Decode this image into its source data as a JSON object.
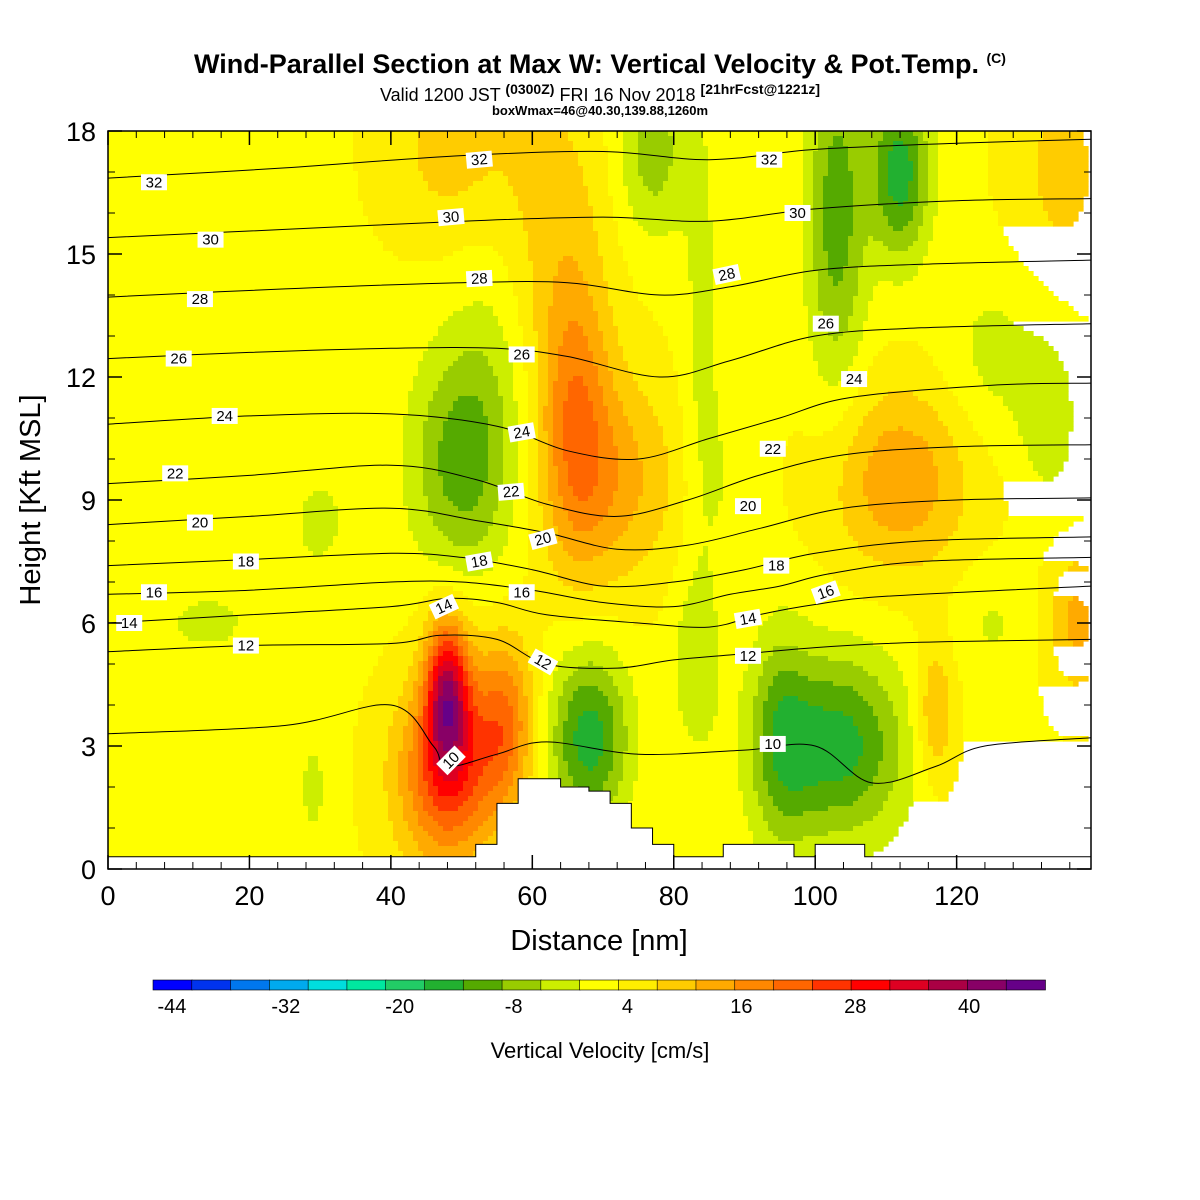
{
  "title": {
    "main": "Wind-Parallel Section at Max W: Vertical Velocity & Pot.Temp.",
    "copyright": "(C)",
    "valid_prefix": "Valid 1200 JST",
    "valid_z": "(0300Z)",
    "valid_date": "FRI 16 Nov 2018",
    "forecast": "[21hrFcst@1221z]",
    "box_max": "boxWmax=46@40.30,139.88,1260m"
  },
  "chart_data": {
    "type": "heatmap",
    "xlabel": "Distance [nm]",
    "ylabel": "Height [Kft MSL]",
    "xlim": [
      0,
      139
    ],
    "ylim": [
      0,
      18
    ],
    "xticks": [
      0,
      20,
      40,
      60,
      80,
      100,
      120
    ],
    "yticks": [
      0,
      3,
      6,
      9,
      12,
      15,
      18
    ],
    "colorbar": {
      "label": "Vertical Velocity [cm/s]",
      "range": [
        -46,
        48
      ],
      "tick_labels": [
        -44,
        -32,
        -20,
        -8,
        4,
        16,
        28,
        40
      ],
      "colors": [
        "#0000ff",
        "#0033ee",
        "#0077ee",
        "#00aaee",
        "#00dddd",
        "#00e8a0",
        "#22cc66",
        "#22b030",
        "#55aa00",
        "#99cc00",
        "#ccee00",
        "#ffff00",
        "#ffee00",
        "#ffcc00",
        "#ffaa00",
        "#ff8800",
        "#ff6600",
        "#ff3300",
        "#ff0000",
        "#dd0022",
        "#aa0044",
        "#880066",
        "#660088"
      ]
    },
    "vertical_velocity_cells": [
      {
        "x": 48,
        "y": 4.3,
        "sx": 2.2,
        "sy": 1.3,
        "w": 30
      },
      {
        "x": 48,
        "y": 2.3,
        "sx": 5.0,
        "sy": 1.6,
        "w": 22
      },
      {
        "x": 56,
        "y": 3.6,
        "sx": 3.0,
        "sy": 1.5,
        "w": 16
      },
      {
        "x": 66,
        "y": 11.0,
        "sx": 3.5,
        "sy": 2.5,
        "w": 14
      },
      {
        "x": 72,
        "y": 9.5,
        "sx": 6.0,
        "sy": 1.8,
        "w": 10
      },
      {
        "x": 62,
        "y": 16.0,
        "sx": 6.0,
        "sy": 3.0,
        "w": 6
      },
      {
        "x": 48,
        "y": 17.5,
        "sx": 6.0,
        "sy": 1.5,
        "w": 6
      },
      {
        "x": 112,
        "y": 9.5,
        "sx": 7.0,
        "sy": 1.6,
        "w": 12
      },
      {
        "x": 117,
        "y": 3.8,
        "sx": 2.0,
        "sy": 1.2,
        "w": 10
      },
      {
        "x": 137,
        "y": 6.0,
        "sx": 3.0,
        "sy": 1.2,
        "w": 10
      },
      {
        "x": 135,
        "y": 17.0,
        "sx": 5.0,
        "sy": 2.0,
        "w": 6
      },
      {
        "x": 88,
        "y": 9.5,
        "sx": 2.5,
        "sy": 1.5,
        "w": -3
      },
      {
        "x": 50,
        "y": 10.0,
        "sx": 5.0,
        "sy": 2.0,
        "w": -14
      },
      {
        "x": 55,
        "y": 13.0,
        "sx": 4.0,
        "sy": 2.5,
        "w": -4
      },
      {
        "x": 68,
        "y": 3.2,
        "sx": 4.0,
        "sy": 1.5,
        "w": -18
      },
      {
        "x": 103,
        "y": 3.0,
        "sx": 7.0,
        "sy": 1.6,
        "w": -18
      },
      {
        "x": 95,
        "y": 3.2,
        "sx": 3.0,
        "sy": 2.0,
        "w": -9
      },
      {
        "x": 83,
        "y": 5.0,
        "sx": 2.5,
        "sy": 1.5,
        "w": -6
      },
      {
        "x": 103,
        "y": 16.0,
        "sx": 3.0,
        "sy": 3.0,
        "w": -14
      },
      {
        "x": 112,
        "y": 17.0,
        "sx": 3.0,
        "sy": 1.5,
        "w": -18
      },
      {
        "x": 77,
        "y": 17.5,
        "sx": 3.5,
        "sy": 1.5,
        "w": -10
      },
      {
        "x": 84,
        "y": 12.5,
        "sx": 2.0,
        "sy": 4.5,
        "w": -5
      },
      {
        "x": 29,
        "y": 2.0,
        "sx": 1.5,
        "sy": 1.0,
        "w": -5
      },
      {
        "x": 14,
        "y": 6.0,
        "sx": 8.0,
        "sy": 1.0,
        "w": -4
      },
      {
        "x": 30,
        "y": 8.5,
        "sx": 5.0,
        "sy": 1.5,
        "w": -4
      },
      {
        "x": 125,
        "y": 12.5,
        "sx": 5.0,
        "sy": 1.5,
        "w": -5
      },
      {
        "x": 133,
        "y": 11.0,
        "sx": 3.0,
        "sy": 1.5,
        "w": -6
      },
      {
        "x": 125,
        "y": 6.0,
        "sx": 4.0,
        "sy": 1.0,
        "w": -4
      },
      {
        "x": 15,
        "y": 1.0,
        "sx": 5.0,
        "sy": 1.0,
        "w": -3
      }
    ],
    "terrain": [
      [
        0,
        0.3
      ],
      [
        47,
        0.3
      ],
      [
        52,
        0.3
      ],
      [
        52,
        0.6
      ],
      [
        55,
        0.6
      ],
      [
        55,
        1.6
      ],
      [
        58,
        1.6
      ],
      [
        58,
        2.2
      ],
      [
        64,
        2.2
      ],
      [
        64,
        2.0
      ],
      [
        68,
        2.0
      ],
      [
        68,
        1.9
      ],
      [
        71,
        1.9
      ],
      [
        71,
        1.6
      ],
      [
        74,
        1.6
      ],
      [
        74,
        1.0
      ],
      [
        77,
        1.0
      ],
      [
        77,
        0.6
      ],
      [
        80,
        0.6
      ],
      [
        80,
        0.3
      ],
      [
        87,
        0.3
      ],
      [
        87,
        0.6
      ],
      [
        97,
        0.6
      ],
      [
        97,
        0.3
      ],
      [
        100,
        0.3
      ],
      [
        100,
        0.6
      ],
      [
        107,
        0.6
      ],
      [
        107,
        0.3
      ],
      [
        139,
        0.3
      ]
    ],
    "theta_contours": [
      {
        "level": 10,
        "points": [
          [
            0,
            3.3
          ],
          [
            25,
            3.5
          ],
          [
            40,
            4.0
          ],
          [
            46,
            3.0
          ],
          [
            48,
            2.5
          ],
          [
            55,
            2.8
          ],
          [
            62,
            3.1
          ],
          [
            75,
            2.8
          ],
          [
            90,
            2.9
          ],
          [
            100,
            3.0
          ],
          [
            108,
            2.1
          ],
          [
            117,
            2.5
          ],
          [
            124,
            3.0
          ],
          [
            139,
            3.2
          ]
        ]
      },
      {
        "level": 12,
        "points": [
          [
            0,
            5.3
          ],
          [
            20,
            5.45
          ],
          [
            40,
            5.5
          ],
          [
            47,
            5.7
          ],
          [
            55,
            5.6
          ],
          [
            62,
            5.0
          ],
          [
            72,
            4.9
          ],
          [
            80,
            5.1
          ],
          [
            90,
            5.25
          ],
          [
            100,
            5.4
          ],
          [
            110,
            5.5
          ],
          [
            120,
            5.55
          ],
          [
            139,
            5.6
          ]
        ]
      },
      {
        "level": 14,
        "points": [
          [
            0,
            6.0
          ],
          [
            20,
            6.2
          ],
          [
            40,
            6.4
          ],
          [
            48,
            6.6
          ],
          [
            55,
            6.5
          ],
          [
            62,
            6.2
          ],
          [
            75,
            6.0
          ],
          [
            85,
            5.9
          ],
          [
            92,
            6.2
          ],
          [
            100,
            6.45
          ],
          [
            110,
            6.65
          ],
          [
            139,
            6.9
          ]
        ]
      },
      {
        "level": 16,
        "points": [
          [
            0,
            6.7
          ],
          [
            20,
            6.8
          ],
          [
            40,
            7.0
          ],
          [
            50,
            7.0
          ],
          [
            60,
            6.8
          ],
          [
            70,
            6.5
          ],
          [
            80,
            6.4
          ],
          [
            88,
            6.7
          ],
          [
            95,
            6.9
          ],
          [
            102,
            7.2
          ],
          [
            115,
            7.5
          ],
          [
            139,
            7.6
          ]
        ]
      },
      {
        "level": 18,
        "points": [
          [
            0,
            7.4
          ],
          [
            20,
            7.55
          ],
          [
            40,
            7.7
          ],
          [
            50,
            7.6
          ],
          [
            60,
            7.3
          ],
          [
            70,
            6.9
          ],
          [
            80,
            7.0
          ],
          [
            90,
            7.3
          ],
          [
            100,
            7.7
          ],
          [
            115,
            8.0
          ],
          [
            139,
            8.1
          ]
        ]
      },
      {
        "level": 20,
        "points": [
          [
            0,
            8.4
          ],
          [
            20,
            8.6
          ],
          [
            40,
            8.8
          ],
          [
            52,
            8.5
          ],
          [
            62,
            8.2
          ],
          [
            72,
            7.8
          ],
          [
            82,
            7.9
          ],
          [
            92,
            8.3
          ],
          [
            104,
            8.8
          ],
          [
            120,
            9.0
          ],
          [
            139,
            9.05
          ]
        ]
      },
      {
        "level": 22,
        "points": [
          [
            0,
            9.4
          ],
          [
            20,
            9.6
          ],
          [
            40,
            9.85
          ],
          [
            52,
            9.5
          ],
          [
            62,
            8.9
          ],
          [
            72,
            8.6
          ],
          [
            82,
            9.0
          ],
          [
            92,
            9.6
          ],
          [
            104,
            10.1
          ],
          [
            120,
            10.3
          ],
          [
            139,
            10.35
          ]
        ]
      },
      {
        "level": 24,
        "points": [
          [
            0,
            10.85
          ],
          [
            20,
            11.05
          ],
          [
            40,
            11.1
          ],
          [
            55,
            10.8
          ],
          [
            65,
            10.2
          ],
          [
            75,
            10.0
          ],
          [
            85,
            10.5
          ],
          [
            95,
            11.0
          ],
          [
            105,
            11.5
          ],
          [
            125,
            11.8
          ],
          [
            139,
            11.85
          ]
        ]
      },
      {
        "level": 26,
        "points": [
          [
            0,
            12.45
          ],
          [
            20,
            12.6
          ],
          [
            40,
            12.7
          ],
          [
            55,
            12.7
          ],
          [
            65,
            12.5
          ],
          [
            78,
            12.0
          ],
          [
            88,
            12.4
          ],
          [
            100,
            13.0
          ],
          [
            115,
            13.2
          ],
          [
            139,
            13.3
          ]
        ]
      },
      {
        "level": 28,
        "points": [
          [
            0,
            13.95
          ],
          [
            25,
            14.15
          ],
          [
            50,
            14.3
          ],
          [
            65,
            14.3
          ],
          [
            78,
            14.0
          ],
          [
            88,
            14.2
          ],
          [
            100,
            14.6
          ],
          [
            115,
            14.75
          ],
          [
            139,
            14.85
          ]
        ]
      },
      {
        "level": 30,
        "points": [
          [
            0,
            15.4
          ],
          [
            25,
            15.6
          ],
          [
            50,
            15.8
          ],
          [
            70,
            15.9
          ],
          [
            85,
            15.8
          ],
          [
            100,
            16.1
          ],
          [
            120,
            16.3
          ],
          [
            139,
            16.35
          ]
        ]
      },
      {
        "level": 32,
        "points": [
          [
            0,
            16.85
          ],
          [
            25,
            17.1
          ],
          [
            50,
            17.4
          ],
          [
            70,
            17.5
          ],
          [
            85,
            17.3
          ],
          [
            100,
            17.55
          ],
          [
            120,
            17.7
          ],
          [
            139,
            17.8
          ]
        ]
      }
    ],
    "contour_labels": [
      {
        "text": "32",
        "x": 6.5,
        "y": 16.75,
        "rot": 0
      },
      {
        "text": "32",
        "x": 52.5,
        "y": 17.3,
        "rot": -5
      },
      {
        "text": "32",
        "x": 93.5,
        "y": 17.3,
        "rot": 0
      },
      {
        "text": "30",
        "x": 14.5,
        "y": 15.35,
        "rot": 0
      },
      {
        "text": "30",
        "x": 48.5,
        "y": 15.9,
        "rot": -5
      },
      {
        "text": "30",
        "x": 97.5,
        "y": 16.0,
        "rot": 0
      },
      {
        "text": "28",
        "x": 13.0,
        "y": 13.9,
        "rot": 0
      },
      {
        "text": "28",
        "x": 52.5,
        "y": 14.4,
        "rot": -3
      },
      {
        "text": "28",
        "x": 87.5,
        "y": 14.5,
        "rot": -12
      },
      {
        "text": "26",
        "x": 101.5,
        "y": 13.3,
        "rot": 0
      },
      {
        "text": "26",
        "x": 10.0,
        "y": 12.45,
        "rot": 0
      },
      {
        "text": "26",
        "x": 58.5,
        "y": 12.55,
        "rot": 0
      },
      {
        "text": "24",
        "x": 105.5,
        "y": 11.95,
        "rot": 0
      },
      {
        "text": "24",
        "x": 16.5,
        "y": 11.05,
        "rot": 0
      },
      {
        "text": "24",
        "x": 58.5,
        "y": 10.65,
        "rot": -10
      },
      {
        "text": "22",
        "x": 94.0,
        "y": 10.25,
        "rot": 0
      },
      {
        "text": "22",
        "x": 9.5,
        "y": 9.65,
        "rot": 0
      },
      {
        "text": "22",
        "x": 57.0,
        "y": 9.2,
        "rot": -5
      },
      {
        "text": "20",
        "x": 90.5,
        "y": 8.85,
        "rot": 0
      },
      {
        "text": "20",
        "x": 13.0,
        "y": 8.45,
        "rot": 0
      },
      {
        "text": "20",
        "x": 61.5,
        "y": 8.05,
        "rot": -15
      },
      {
        "text": "18",
        "x": 94.5,
        "y": 7.4,
        "rot": 0
      },
      {
        "text": "18",
        "x": 19.5,
        "y": 7.5,
        "rot": 0
      },
      {
        "text": "18",
        "x": 52.5,
        "y": 7.5,
        "rot": -10
      },
      {
        "text": "16",
        "x": 6.5,
        "y": 6.75,
        "rot": 0
      },
      {
        "text": "16",
        "x": 58.5,
        "y": 6.75,
        "rot": 0
      },
      {
        "text": "16",
        "x": 101.5,
        "y": 6.75,
        "rot": -20
      },
      {
        "text": "14",
        "x": 3.0,
        "y": 6.0,
        "rot": 0
      },
      {
        "text": "14",
        "x": 47.5,
        "y": 6.4,
        "rot": -25
      },
      {
        "text": "14",
        "x": 90.5,
        "y": 6.1,
        "rot": -10
      },
      {
        "text": "12",
        "x": 19.5,
        "y": 5.45,
        "rot": 0
      },
      {
        "text": "12",
        "x": 61.5,
        "y": 5.05,
        "rot": 30
      },
      {
        "text": "12",
        "x": 90.5,
        "y": 5.2,
        "rot": 0
      },
      {
        "text": "10",
        "x": 48.5,
        "y": 2.65,
        "rot": -45
      },
      {
        "text": "10",
        "x": 94.0,
        "y": 3.05,
        "rot": 0
      }
    ]
  }
}
